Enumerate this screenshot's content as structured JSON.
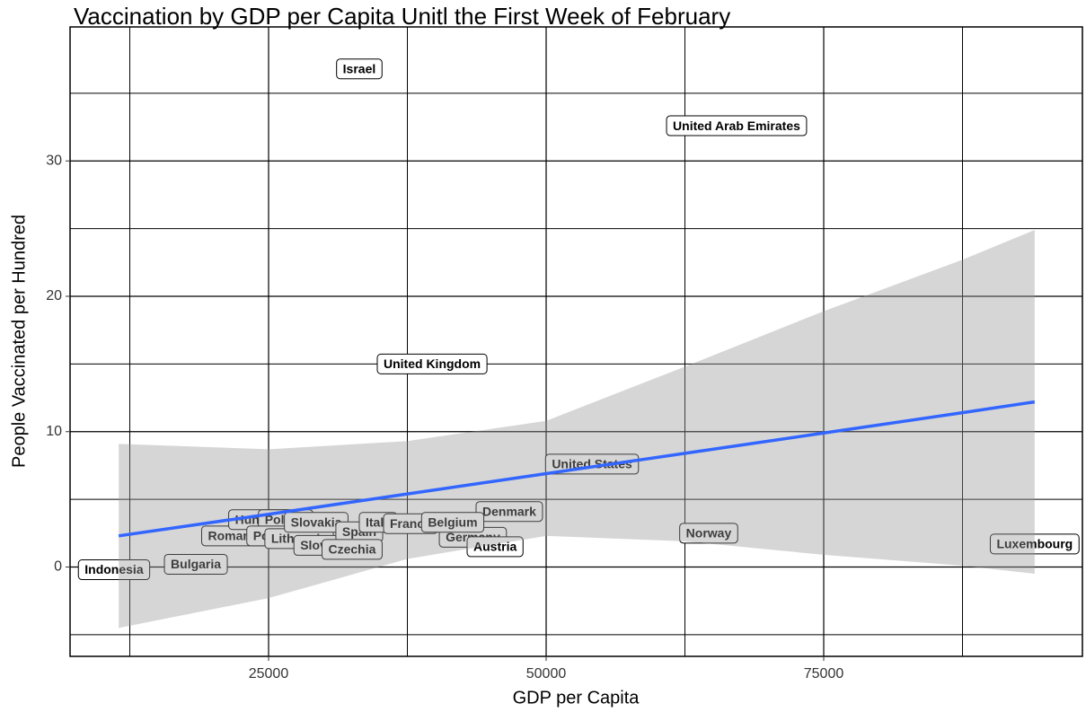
{
  "chart_data": {
    "type": "scatter",
    "title": "Vaccination by GDP per Capita Unitl the First Week of February",
    "x_label": "GDP per Capita",
    "y_label": "People Vaccinated per Hundred",
    "labels": [
      "Israel",
      "United Arab Emirates",
      "United Kingdom",
      "United States",
      "Denmark",
      "Norway",
      "Luxembourg",
      "Germany",
      "Austria",
      "Indonesia",
      "Bulgaria",
      "Romania",
      "Hungary",
      "Poland",
      "Portugal",
      "Lithuania",
      "Slovakia",
      "Slovenia",
      "Spain",
      "Italy",
      "France",
      "Belgium",
      "Czechia"
    ],
    "x": [
      33170,
      67150,
      39730,
      54130,
      46680,
      64640,
      94000,
      43400,
      45400,
      11080,
      18450,
      21930,
      24270,
      26540,
      25900,
      27750,
      29290,
      30180,
      33170,
      34870,
      37780,
      41580,
      32520
    ],
    "values": [
      36.8,
      32.6,
      15.0,
      7.6,
      4.1,
      2.5,
      1.7,
      2.2,
      1.5,
      -0.2,
      0.2,
      2.3,
      3.5,
      3.5,
      2.3,
      2.1,
      3.3,
      1.6,
      2.6,
      3.3,
      3.2,
      3.3,
      1.3
    ],
    "fit": {
      "color": "#3366ff",
      "x": [
        11500,
        25000,
        37500,
        50000,
        62500,
        75000,
        87500,
        94000
      ],
      "values": [
        2.3,
        3.9,
        5.4,
        6.9,
        8.4,
        9.9,
        11.4,
        12.2
      ],
      "lower": [
        -4.5,
        -2.3,
        0.6,
        2.3,
        1.9,
        0.9,
        0.1,
        -0.5
      ],
      "upper": [
        9.1,
        8.7,
        9.3,
        10.8,
        14.8,
        18.9,
        22.7,
        24.9
      ]
    },
    "xlim": [
      7120,
      98300
    ],
    "ylim": [
      -6.6,
      39.9
    ],
    "xticks": [
      25000,
      50000,
      75000
    ],
    "yticks": [
      0,
      10,
      20,
      30
    ],
    "x_minor_ticks": [
      12500,
      37500,
      62500,
      87500
    ],
    "y_minor_ticks": [
      -5,
      5,
      15,
      25,
      35
    ],
    "grid": true
  }
}
